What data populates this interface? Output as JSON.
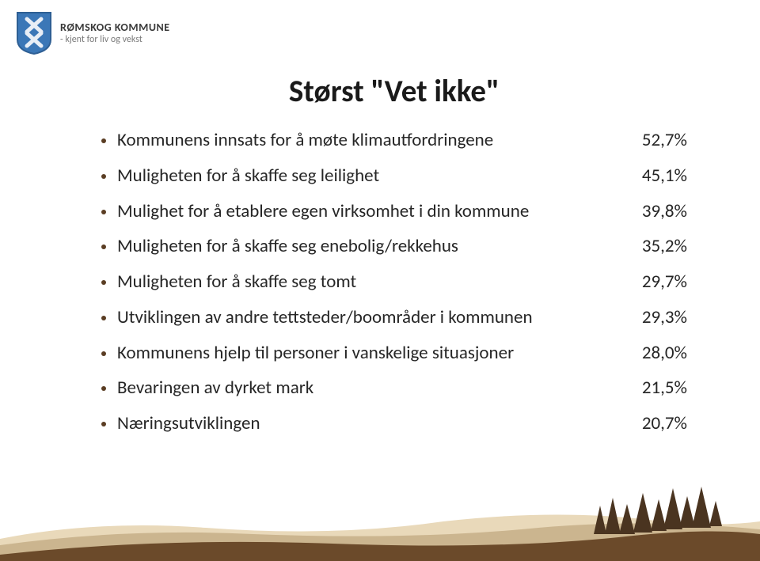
{
  "colors": {
    "shield_blue": "#3b77b7",
    "shield_stroke": "#2e5f94",
    "shield_cross": "#e8eef6",
    "text_dark": "#1a1a1a",
    "text_body": "#262626",
    "logo_title": "#3a3a3a",
    "logo_tagline": "#7a7a7a",
    "bullet": "#5a3d23",
    "ground_brown": "#6b4a2a",
    "ground_cream": "#e9d9ba",
    "ground_taupe": "#cbb58f",
    "tree_dark": "#4a3420"
  },
  "header": {
    "title": "RØMSKOG KOMMUNE",
    "tagline": "- kjent for liv og vekst"
  },
  "slide": {
    "title": "Størst \"Vet ikke\"",
    "items": [
      {
        "label": "Kommunens innsats for å møte klimautfordringene",
        "value": "52,7%"
      },
      {
        "label": "Muligheten for å skaffe seg leilighet",
        "value": "45,1%"
      },
      {
        "label": "Mulighet for å etablere egen virksomhet i din kommune",
        "value": "39,8%"
      },
      {
        "label": "Muligheten for å skaffe seg enebolig/rekkehus",
        "value": "35,2%"
      },
      {
        "label": "Muligheten for å skaffe seg tomt",
        "value": "29,7%"
      },
      {
        "label": "Utviklingen av andre tettsteder/boområder i kommunen",
        "value": "29,3%"
      },
      {
        "label": "Kommunens hjelp til personer i vanskelige situasjoner",
        "value": "28,0%"
      },
      {
        "label": "Bevaringen av dyrket mark",
        "value": "21,5%"
      },
      {
        "label": "Næringsutviklingen",
        "value": "20,7%"
      }
    ]
  }
}
